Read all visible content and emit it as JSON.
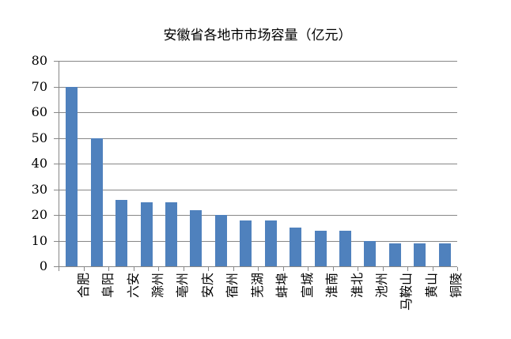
{
  "chart_data": {
    "type": "bar",
    "title": "安徽省各地市市场容量（亿元）",
    "categories": [
      "合肥",
      "阜阳",
      "六安",
      "滁州",
      "亳州",
      "安庆",
      "宿州",
      "芜湖",
      "蚌埠",
      "宣城",
      "淮南",
      "淮北",
      "池州",
      "马鞍山",
      "黄山",
      "铜陵"
    ],
    "values": [
      70,
      50,
      26,
      25,
      25,
      22,
      20,
      18,
      18,
      15,
      14,
      14,
      10,
      9,
      9,
      9
    ],
    "xlabel": "",
    "ylabel": "",
    "ylim": [
      0,
      80
    ],
    "yticks": [
      0,
      10,
      20,
      30,
      40,
      50,
      60,
      70,
      80
    ],
    "grid": "horizontal",
    "legend": "none",
    "colors": {
      "bar": "#4F81BD",
      "axis": "#878787",
      "gridline": "#878787",
      "text": "#000000",
      "background": "#FFFFFF"
    }
  }
}
